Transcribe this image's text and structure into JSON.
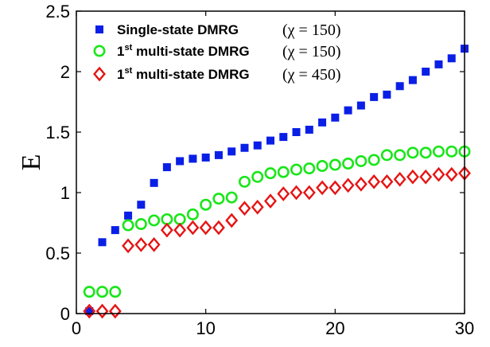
{
  "chart_data": {
    "type": "scatter",
    "title": "",
    "xlabel": "",
    "ylabel": "E",
    "xlim": [
      0,
      30
    ],
    "ylim": [
      0,
      2.5
    ],
    "xticks": [
      0,
      10,
      20,
      30
    ],
    "xtick_labels": [
      "0",
      "10",
      "20",
      "30"
    ],
    "yticks": [
      0,
      0.5,
      1,
      1.5,
      2,
      2.5
    ],
    "ytick_labels": [
      "0",
      "0.5",
      "1",
      "1.5",
      "2",
      "2.5"
    ],
    "grid": false,
    "legend_position": "top-left",
    "series": [
      {
        "name": "Single-state DMRG",
        "name_sup": "",
        "name_rest": "",
        "chi_label": "(χ = 150)",
        "marker": "filled-square",
        "color": "#0a1fe6",
        "x": [
          1,
          2,
          3,
          4,
          5,
          6,
          7,
          8,
          9,
          10,
          11,
          12,
          13,
          14,
          15,
          16,
          17,
          18,
          19,
          20,
          21,
          22,
          23,
          24,
          25,
          26,
          27,
          28,
          29,
          30
        ],
        "y": [
          0.02,
          0.59,
          0.69,
          0.81,
          0.9,
          1.08,
          1.21,
          1.26,
          1.28,
          1.29,
          1.31,
          1.34,
          1.37,
          1.39,
          1.43,
          1.46,
          1.5,
          1.52,
          1.58,
          1.62,
          1.68,
          1.72,
          1.79,
          1.81,
          1.88,
          1.93,
          2.0,
          2.06,
          2.11,
          2.19
        ]
      },
      {
        "name": "1",
        "name_sup": "st",
        "name_rest": " multi-state  DMRG",
        "chi_label": "(χ = 150)",
        "marker": "open-circle",
        "color": "#19e619",
        "x": [
          1,
          2,
          3,
          4,
          5,
          6,
          7,
          8,
          9,
          10,
          11,
          12,
          13,
          14,
          15,
          16,
          17,
          18,
          19,
          20,
          21,
          22,
          23,
          24,
          25,
          26,
          27,
          28,
          29,
          30
        ],
        "y": [
          0.18,
          0.18,
          0.18,
          0.73,
          0.74,
          0.77,
          0.78,
          0.78,
          0.82,
          0.9,
          0.95,
          0.96,
          1.09,
          1.13,
          1.16,
          1.17,
          1.19,
          1.2,
          1.22,
          1.23,
          1.24,
          1.26,
          1.27,
          1.31,
          1.31,
          1.33,
          1.33,
          1.34,
          1.34,
          1.34
        ]
      },
      {
        "name": "1",
        "name_sup": "st",
        "name_rest": " multi-state  DMRG",
        "chi_label": "(χ = 450)",
        "marker": "open-diamond",
        "color": "#e61414",
        "x": [
          1,
          2,
          3,
          4,
          5,
          6,
          7,
          8,
          9,
          10,
          11,
          12,
          13,
          14,
          15,
          16,
          17,
          18,
          19,
          20,
          21,
          22,
          23,
          24,
          25,
          26,
          27,
          28,
          29,
          30
        ],
        "y": [
          0.02,
          0.02,
          0.02,
          0.56,
          0.57,
          0.57,
          0.69,
          0.69,
          0.71,
          0.71,
          0.71,
          0.77,
          0.87,
          0.88,
          0.93,
          0.99,
          1.0,
          1.0,
          1.04,
          1.04,
          1.06,
          1.07,
          1.09,
          1.09,
          1.11,
          1.13,
          1.13,
          1.15,
          1.15,
          1.16
        ]
      }
    ]
  }
}
